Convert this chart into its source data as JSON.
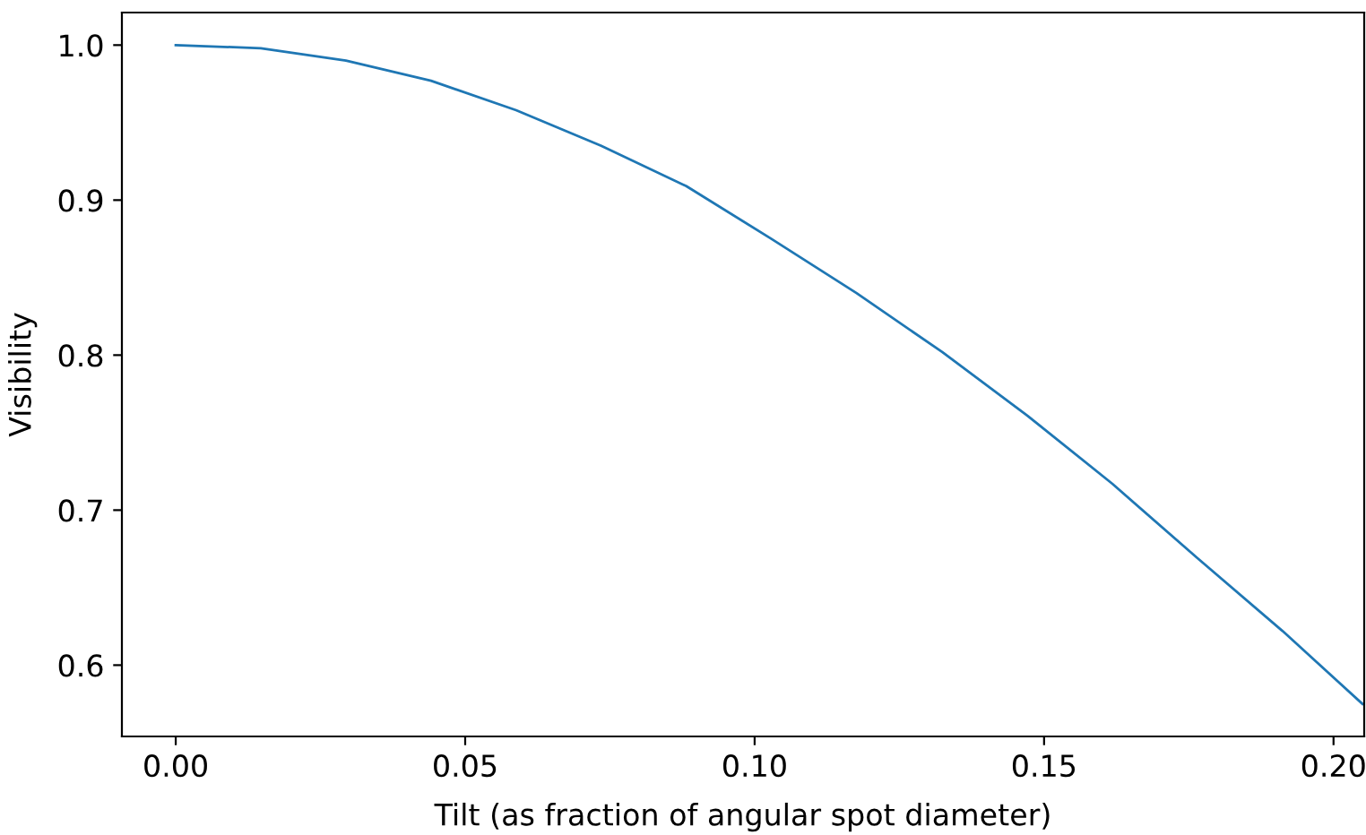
{
  "chart_data": {
    "type": "line",
    "xlabel": "Tilt (as fraction of angular spot diameter)",
    "ylabel": "Visibility",
    "x": [
      0,
      0.0147,
      0.0294,
      0.0441,
      0.0588,
      0.0735,
      0.0882,
      0.1029,
      0.1176,
      0.1324,
      0.1471,
      0.1618,
      0.1765,
      0.1912,
      0.205
    ],
    "series": [
      {
        "color": "#1f77b4",
        "values": [
          1.0,
          0.998,
          0.99,
          0.977,
          0.958,
          0.935,
          0.909,
          0.875,
          0.84,
          0.802,
          0.761,
          0.717,
          0.669,
          0.622,
          0.575
        ]
      }
    ],
    "xlim": [
      -0.0093,
      0.2053
    ],
    "ylim": [
      0.554,
      1.021
    ],
    "xticks": [
      {
        "value": 0,
        "label": "0.00"
      },
      {
        "value": 0.05,
        "label": "0.05"
      },
      {
        "value": 0.1,
        "label": "0.10"
      },
      {
        "value": 0.15,
        "label": "0.15"
      },
      {
        "value": 0.2,
        "label": "0.20"
      }
    ],
    "yticks": [
      {
        "value": 0.6,
        "label": "0.6"
      },
      {
        "value": 0.7,
        "label": "0.7"
      },
      {
        "value": 0.8,
        "label": "0.8"
      },
      {
        "value": 0.9,
        "label": "0.9"
      },
      {
        "value": 1.0,
        "label": "1.0"
      }
    ],
    "grid": false,
    "legend": false
  }
}
